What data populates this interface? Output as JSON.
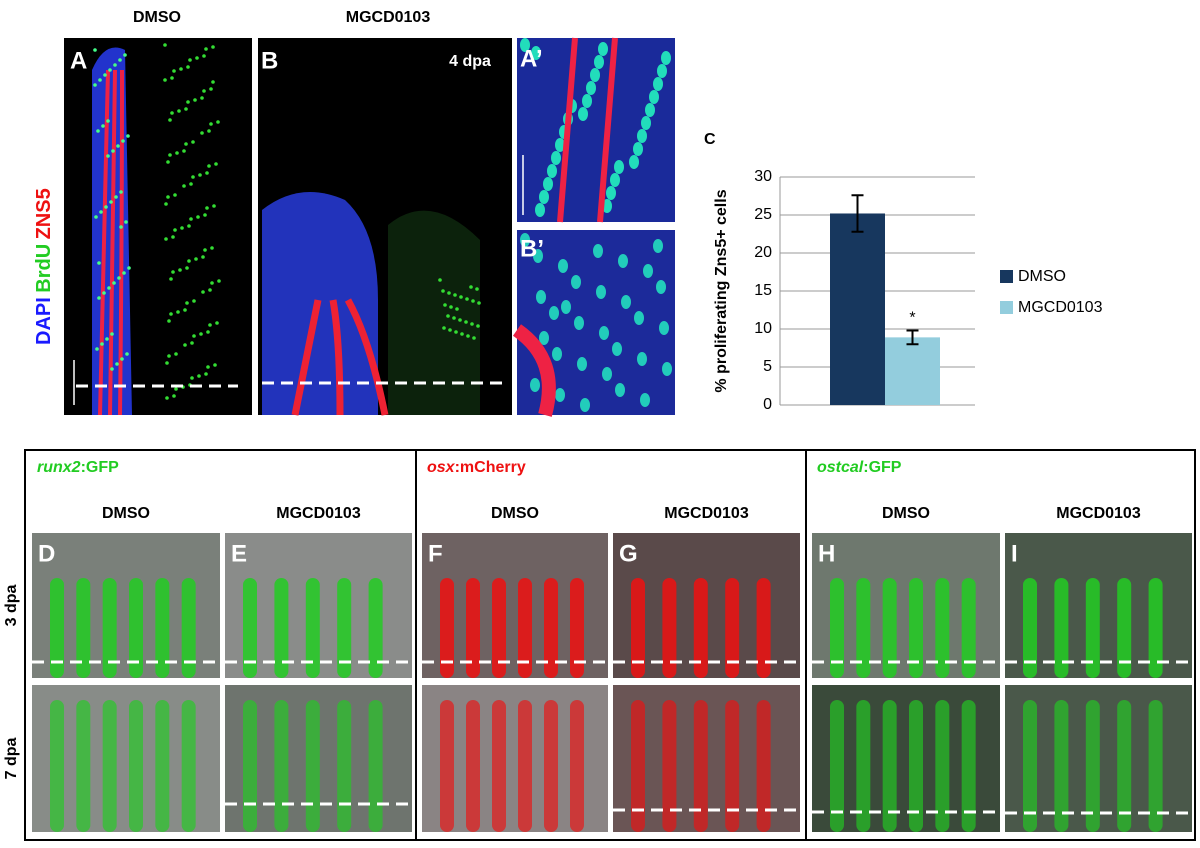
{
  "top": {
    "headers": [
      "DMSO",
      "MGCD0103"
    ],
    "stains": [
      "DAPI",
      "BrdU",
      "ZNS5"
    ],
    "panels": [
      "A",
      "B",
      "A’",
      "B’"
    ],
    "timepoint": "4 dpa"
  },
  "chart_data": {
    "type": "bar",
    "panel": "C",
    "ylabel": "% proliferating Zns5+ cells",
    "categories": [
      null
    ],
    "series": [
      {
        "name": "DMSO",
        "color": "#17375e",
        "values": [
          25.2
        ],
        "errors": [
          2.4
        ]
      },
      {
        "name": "MGCD0103",
        "color": "#93cddd",
        "values": [
          8.9
        ],
        "errors": [
          0.9
        ]
      }
    ],
    "annotation": "*",
    "ylim": [
      0,
      30
    ],
    "yticks": [
      0,
      5,
      10,
      15,
      20,
      25,
      30
    ],
    "grid": true,
    "legend": "right"
  },
  "bottom": {
    "rows": [
      "3 dpa",
      "7 dpa"
    ],
    "groups": [
      {
        "gene": "runx2",
        "suffix": ":GFP",
        "color": "#22cc22",
        "columns": [
          "DMSO",
          "MGCD0103"
        ],
        "panels": [
          "D",
          "E"
        ]
      },
      {
        "gene": "osx",
        "suffix": ":mCherry",
        "color": "#ee1111",
        "columns": [
          "DMSO",
          "MGCD0103"
        ],
        "panels": [
          "F",
          "G"
        ]
      },
      {
        "gene": "ostcal",
        "suffix": ":GFP",
        "color": "#22cc22",
        "columns": [
          "DMSO",
          "MGCD0103"
        ],
        "panels": [
          "H",
          "I"
        ]
      }
    ]
  }
}
